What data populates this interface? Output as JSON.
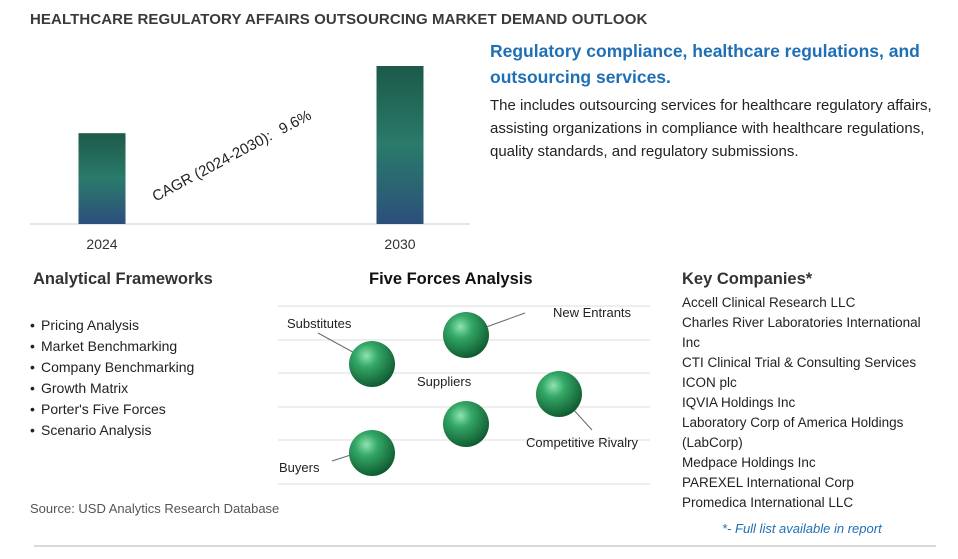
{
  "title": "HEALTHCARE REGULATORY AFFAIRS OUTSOURCING MARKET DEMAND OUTLOOK",
  "chart_data": {
    "type": "bar",
    "categories": [
      "2024",
      "2030"
    ],
    "values": [
      1.0,
      1.74
    ],
    "cagr_label": "CAGR (2024-2030):",
    "cagr_value": "9.6%",
    "colors": {
      "bar_top": "#1f6b4f",
      "bar_bottom": "#2f4f7a"
    },
    "grid": false
  },
  "headline": "Regulatory compliance, healthcare regulations, and outsourcing services.",
  "description": "The includes outsourcing services for healthcare regulatory affairs, assisting organizations in compliance with healthcare regulations, quality standards, and regulatory submissions.",
  "frameworks": {
    "heading": "Analytical Frameworks",
    "items": [
      "Pricing Analysis",
      "Market Benchmarking",
      "Company Benchmarking",
      "Growth Matrix",
      "Porter's Five Forces",
      "Scenario Analysis"
    ]
  },
  "five_forces": {
    "heading": "Five Forces Analysis",
    "labels": {
      "substitutes": "Substitutes",
      "new_entrants": "New Entrants",
      "suppliers": "Suppliers",
      "competitive_rivalry": "Competitive Rivalry",
      "buyers": "Buyers"
    },
    "sphere_color": "#2e9e5e"
  },
  "key_companies": {
    "heading": "Key Companies*",
    "items": [
      "Accell Clinical Research LLC",
      "Charles River Laboratories International Inc",
      "CTI Clinical Trial & Consulting Services",
      "ICON plc",
      "IQVIA Holdings Inc",
      "Laboratory Corp of America Holdings (LabCorp)",
      "Medpace Holdings Inc",
      "PAREXEL International Corp",
      "Promedica International LLC"
    ],
    "note": "*- Full list available in report"
  },
  "source": "Source: USD Analytics Research Database",
  "accent_color": "#1f6fb5"
}
